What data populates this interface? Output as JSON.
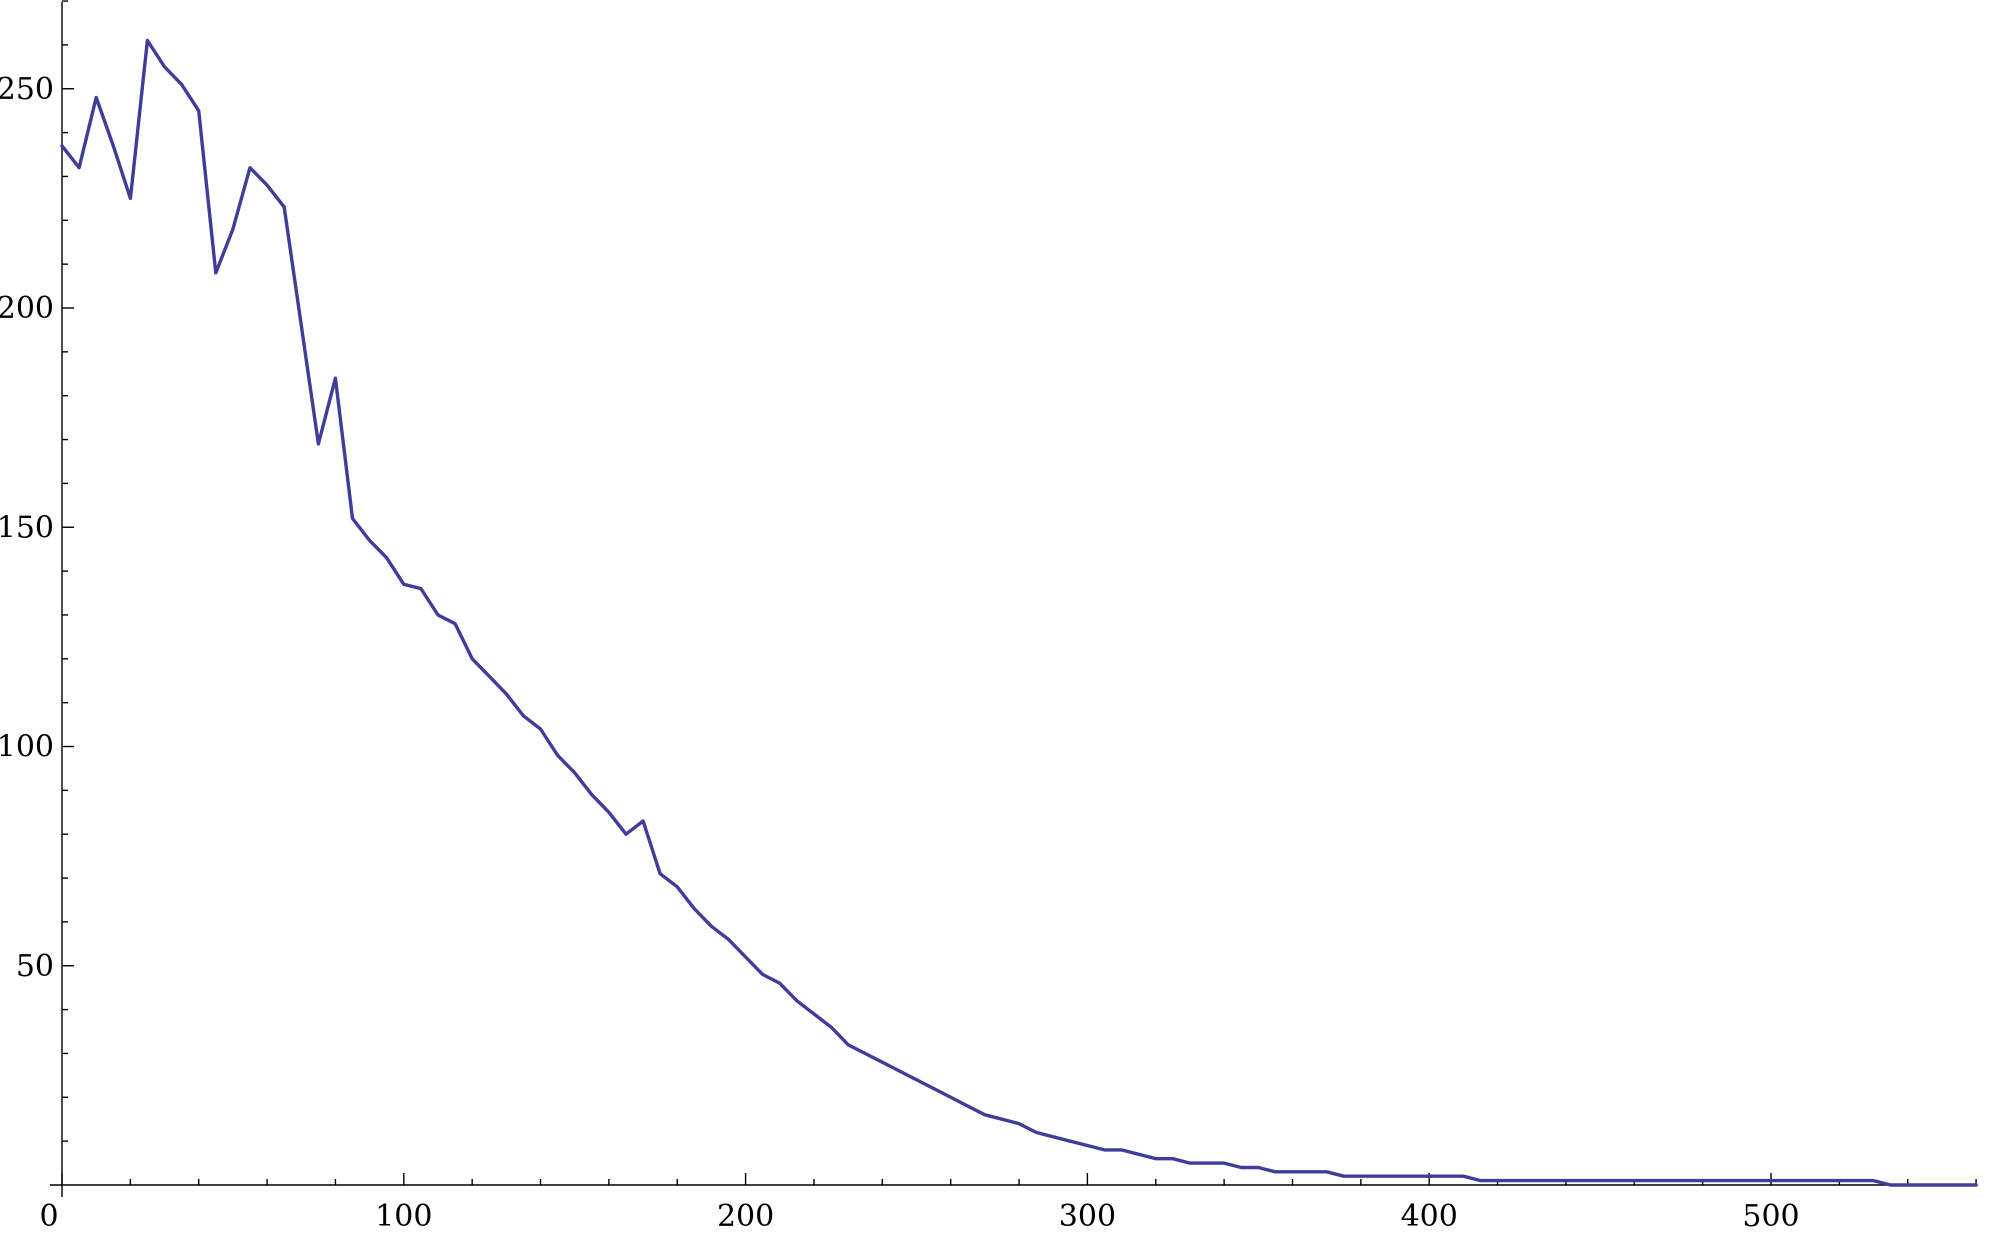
{
  "chart_data": {
    "type": "line",
    "title": "",
    "xlabel": "",
    "ylabel": "",
    "xlim": [
      0,
      565
    ],
    "ylim": [
      0,
      270
    ],
    "x_ticks_major": [
      0,
      100,
      200,
      300,
      400,
      500
    ],
    "x_tick_labels": [
      "0",
      "100",
      "200",
      "300",
      "400",
      "500"
    ],
    "x_minor_step": 20,
    "y_ticks_major": [
      50,
      100,
      150,
      200,
      250
    ],
    "y_tick_labels": [
      "50",
      "100",
      "150",
      "200",
      "250"
    ],
    "y_minor_step": 10,
    "grid": false,
    "legend": "none",
    "line_color": "#3f3d99",
    "series": [
      {
        "x": [
          0,
          5,
          10,
          15,
          20,
          25,
          30,
          35,
          40,
          45,
          50,
          55,
          60,
          65,
          70,
          75,
          80,
          85,
          90,
          95,
          100,
          105,
          110,
          115,
          120,
          125,
          130,
          135,
          140,
          145,
          150,
          155,
          160,
          165,
          170,
          175,
          180,
          185,
          190,
          195,
          200,
          205,
          210,
          215,
          220,
          225,
          230,
          235,
          240,
          245,
          250,
          255,
          260,
          265,
          270,
          275,
          280,
          285,
          290,
          295,
          300,
          305,
          310,
          315,
          320,
          325,
          330,
          335,
          340,
          345,
          350,
          355,
          360,
          365,
          370,
          375,
          380,
          385,
          390,
          395,
          400,
          405,
          410,
          415,
          420,
          425,
          430,
          435,
          440,
          445,
          450,
          455,
          460,
          465,
          470,
          475,
          480,
          485,
          490,
          495,
          500,
          505,
          510,
          515,
          520,
          525,
          530,
          535,
          540,
          545,
          550,
          555,
          560
        ],
        "values": [
          237,
          232,
          248,
          237,
          225,
          261,
          255,
          251,
          245,
          208,
          218,
          232,
          228,
          223,
          196,
          169,
          184,
          152,
          147,
          143,
          137,
          136,
          130,
          128,
          120,
          116,
          112,
          107,
          104,
          98,
          94,
          89,
          85,
          80,
          83,
          71,
          68,
          63,
          59,
          56,
          52,
          48,
          46,
          42,
          39,
          36,
          32,
          30,
          28,
          26,
          24,
          22,
          20,
          18,
          16,
          15,
          14,
          12,
          11,
          10,
          9,
          8,
          8,
          7,
          6,
          6,
          5,
          5,
          5,
          4,
          4,
          3,
          3,
          3,
          3,
          2,
          2,
          2,
          2,
          2,
          2,
          2,
          2,
          1,
          1,
          1,
          1,
          1,
          1,
          1,
          1,
          1,
          1,
          1,
          1,
          1,
          1,
          1,
          1,
          1,
          1,
          1,
          1,
          1,
          1,
          1,
          1,
          0,
          0,
          0,
          0,
          0,
          0
        ]
      }
    ]
  }
}
